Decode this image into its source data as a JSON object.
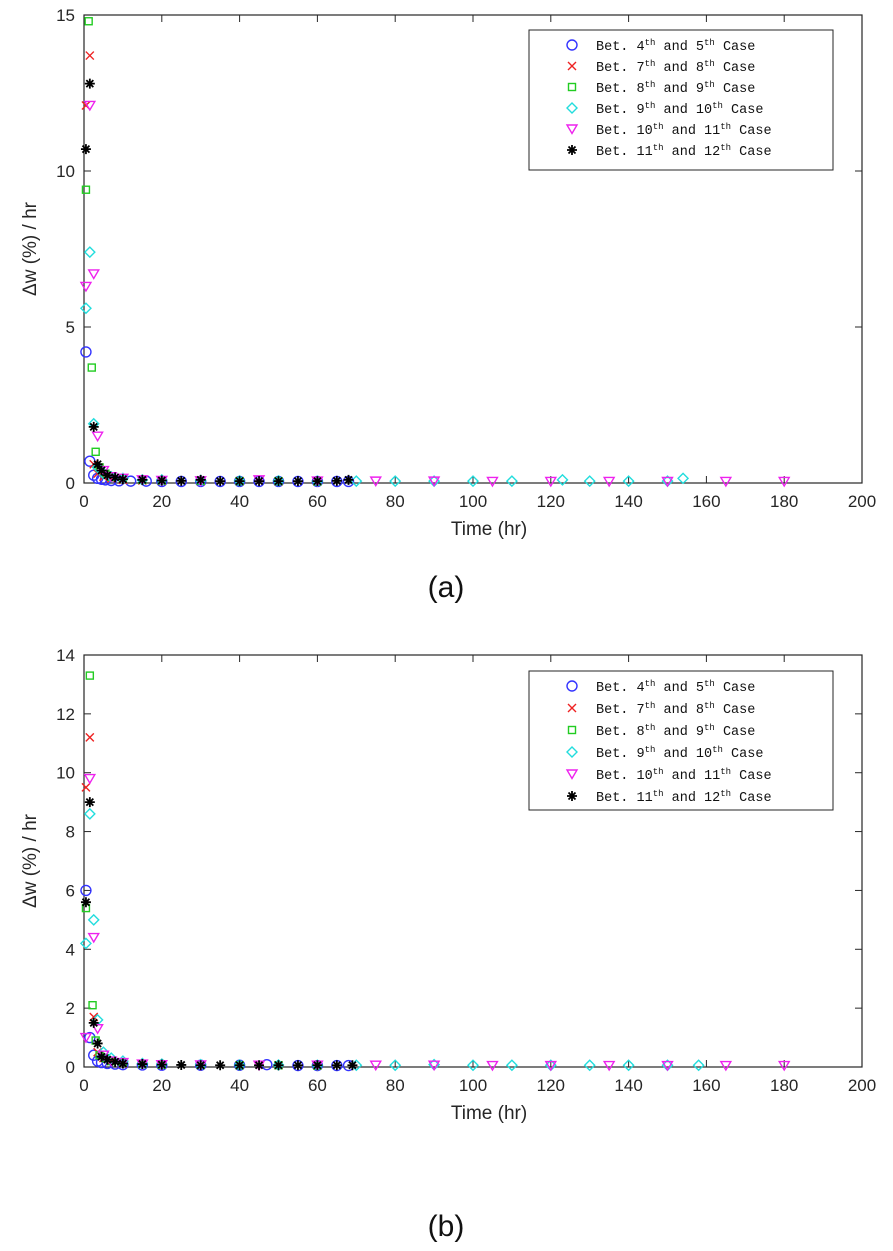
{
  "chart_data": [
    {
      "type": "scatter",
      "panel_label": "(a)",
      "xlabel": "Time (hr)",
      "ylabel": "Δw (%) / hr",
      "xlim": [
        0,
        200
      ],
      "ylim": [
        0,
        15
      ],
      "xticks": [
        "0",
        "20",
        "40",
        "60",
        "80",
        "100",
        "120",
        "140",
        "160",
        "180",
        "200"
      ],
      "yticks": [
        "0",
        "5",
        "10",
        "15"
      ],
      "grid": false,
      "legend_position": "top-right",
      "series": [
        {
          "name": "Bet. 4th and 5th Case",
          "label": {
            "a": "Bet. 4",
            "s1": "th",
            "b": " and 5",
            "s2": "th",
            "c": " Case"
          },
          "marker": "circle",
          "color": "#3333ff",
          "x": [
            0.5,
            1.5,
            2.5,
            3.5,
            4.5,
            5.5,
            7,
            9,
            12,
            16,
            20,
            25,
            30,
            35,
            40,
            45,
            50,
            55,
            60,
            65,
            68
          ],
          "y": [
            4.2,
            0.7,
            0.25,
            0.15,
            0.12,
            0.1,
            0.08,
            0.07,
            0.06,
            0.06,
            0.05,
            0.05,
            0.05,
            0.05,
            0.05,
            0.05,
            0.05,
            0.05,
            0.05,
            0.05,
            0.05
          ]
        },
        {
          "name": "Bet. 7th and 8th Case",
          "label": {
            "a": "Bet. 7",
            "s1": "th",
            "b": " and 8",
            "s2": "th",
            "c": " Case"
          },
          "marker": "x",
          "color": "#ee2222",
          "x": [
            0.5,
            1.5,
            2.5,
            3.5,
            5,
            7,
            10,
            15,
            20,
            30,
            40,
            50,
            60
          ],
          "y": [
            12.1,
            13.7,
            0.6,
            0.3,
            0.2,
            0.15,
            0.1,
            0.08,
            0.07,
            0.06,
            0.06,
            0.05,
            0.05
          ]
        },
        {
          "name": "Bet. 8th and 9th Case",
          "label": {
            "a": "Bet. 8",
            "s1": "th",
            "b": " and 9",
            "s2": "th",
            "c": " Case"
          },
          "marker": "square",
          "color": "#22cc22",
          "x": [
            0.5,
            1.2,
            2.0,
            3.0,
            4.0,
            5.5,
            7,
            10,
            15,
            20,
            30,
            40,
            50,
            60
          ],
          "y": [
            9.4,
            14.8,
            3.7,
            1.0,
            0.5,
            0.3,
            0.2,
            0.15,
            0.1,
            0.08,
            0.07,
            0.06,
            0.06,
            0.05
          ]
        },
        {
          "name": "Bet. 9th and 10th Case",
          "label": {
            "a": "Bet. 9",
            "s1": "th",
            "b": " and 10",
            "s2": "th",
            "c": " Case"
          },
          "marker": "diamond",
          "color": "#22dddd",
          "x": [
            0.5,
            1.5,
            2.5,
            3.5,
            5,
            7,
            10,
            15,
            20,
            30,
            40,
            50,
            60,
            70,
            80,
            90,
            100,
            110,
            123,
            130,
            140,
            150,
            154
          ],
          "y": [
            5.6,
            7.4,
            1.9,
            0.5,
            0.3,
            0.2,
            0.15,
            0.1,
            0.1,
            0.08,
            0.07,
            0.07,
            0.06,
            0.06,
            0.06,
            0.06,
            0.06,
            0.06,
            0.1,
            0.06,
            0.06,
            0.06,
            0.15
          ]
        },
        {
          "name": "Bet. 10th and 11th Case",
          "label": {
            "a": "Bet. 10",
            "s1": "th",
            "b": " and 11",
            "s2": "th",
            "c": " Case"
          },
          "marker": "triangle-down",
          "color": "#ee22ee",
          "x": [
            0.5,
            1.5,
            2.5,
            3.5,
            5,
            7,
            10,
            15,
            20,
            30,
            45,
            60,
            75,
            90,
            105,
            120,
            135,
            150,
            165,
            180
          ],
          "y": [
            6.3,
            12.1,
            6.7,
            1.5,
            0.4,
            0.2,
            0.15,
            0.1,
            0.08,
            0.07,
            0.1,
            0.06,
            0.06,
            0.06,
            0.05,
            0.05,
            0.05,
            0.05,
            0.05,
            0.05
          ]
        },
        {
          "name": "Bet. 11th and 12th Case",
          "label": {
            "a": "Bet. 11",
            "s1": "th",
            "b": " and 12",
            "s2": "th",
            "c": " Case"
          },
          "marker": "star",
          "color": "#000000",
          "x": [
            0.5,
            1.5,
            2.5,
            3.5,
            4.5,
            6,
            8,
            10,
            15,
            20,
            25,
            30,
            35,
            40,
            45,
            50,
            55,
            60,
            65,
            68
          ],
          "y": [
            10.7,
            12.8,
            1.8,
            0.6,
            0.4,
            0.25,
            0.18,
            0.12,
            0.1,
            0.08,
            0.07,
            0.1,
            0.06,
            0.06,
            0.06,
            0.06,
            0.06,
            0.06,
            0.07,
            0.1
          ]
        }
      ]
    },
    {
      "type": "scatter",
      "panel_label": "(b)",
      "xlabel": "Time (hr)",
      "ylabel": "Δw (%) / hr",
      "xlim": [
        0,
        200
      ],
      "ylim": [
        0,
        14
      ],
      "xticks": [
        "0",
        "20",
        "40",
        "60",
        "80",
        "100",
        "120",
        "140",
        "160",
        "180",
        "200"
      ],
      "yticks": [
        "0",
        "2",
        "4",
        "6",
        "8",
        "10",
        "12",
        "14"
      ],
      "grid": false,
      "legend_position": "top-right",
      "series": [
        {
          "name": "Bet. 4th and 5th Case",
          "label": {
            "a": "Bet. 4",
            "s1": "th",
            "b": " and 5",
            "s2": "th",
            "c": " Case"
          },
          "marker": "circle",
          "color": "#3333ff",
          "x": [
            0.5,
            1.5,
            2.5,
            3.5,
            4.5,
            6,
            8,
            10,
            15,
            20,
            30,
            40,
            47,
            55,
            60,
            65,
            68
          ],
          "y": [
            6.0,
            1.0,
            0.4,
            0.2,
            0.15,
            0.12,
            0.1,
            0.08,
            0.07,
            0.06,
            0.06,
            0.06,
            0.08,
            0.05,
            0.05,
            0.05,
            0.05
          ]
        },
        {
          "name": "Bet. 7th and 8th Case",
          "label": {
            "a": "Bet. 7",
            "s1": "th",
            "b": " and 8",
            "s2": "th",
            "c": " Case"
          },
          "marker": "x",
          "color": "#ee2222",
          "x": [
            0.5,
            1.5,
            2.5,
            3.5,
            5,
            7,
            10,
            15,
            20,
            30,
            40,
            50,
            60
          ],
          "y": [
            9.5,
            11.2,
            1.7,
            0.5,
            0.3,
            0.2,
            0.12,
            0.1,
            0.08,
            0.07,
            0.06,
            0.06,
            0.05
          ]
        },
        {
          "name": "Bet. 8th and 9th Case",
          "label": {
            "a": "Bet. 8",
            "s1": "th",
            "b": " and 9",
            "s2": "th",
            "c": " Case"
          },
          "marker": "square",
          "color": "#22cc22",
          "x": [
            0.5,
            1.5,
            2.2,
            3.0,
            4.0,
            5.5,
            7,
            10,
            15,
            20,
            30,
            40,
            50,
            60
          ],
          "y": [
            5.4,
            13.3,
            2.1,
            0.9,
            0.4,
            0.3,
            0.2,
            0.15,
            0.1,
            0.08,
            0.07,
            0.06,
            0.06,
            0.05
          ]
        },
        {
          "name": "Bet. 9th and 10th Case",
          "label": {
            "a": "Bet. 9",
            "s1": "th",
            "b": " and 10",
            "s2": "th",
            "c": " Case"
          },
          "marker": "diamond",
          "color": "#22dddd",
          "x": [
            0.5,
            1.5,
            2.5,
            3.5,
            5,
            7,
            10,
            15,
            20,
            30,
            40,
            50,
            60,
            70,
            80,
            90,
            100,
            110,
            120,
            130,
            140,
            150,
            158
          ],
          "y": [
            4.2,
            8.6,
            5.0,
            1.6,
            0.5,
            0.3,
            0.2,
            0.12,
            0.1,
            0.08,
            0.07,
            0.07,
            0.06,
            0.06,
            0.06,
            0.08,
            0.06,
            0.06,
            0.06,
            0.06,
            0.06,
            0.06,
            0.06
          ]
        },
        {
          "name": "Bet. 10th and 11th Case",
          "label": {
            "a": "Bet. 10",
            "s1": "th",
            "b": " and 11",
            "s2": "th",
            "c": " Case"
          },
          "marker": "triangle-down",
          "color": "#ee22ee",
          "x": [
            0.5,
            1.5,
            2.5,
            3.5,
            5,
            7,
            10,
            15,
            20,
            30,
            45,
            60,
            75,
            90,
            105,
            120,
            135,
            150,
            165,
            180
          ],
          "y": [
            1.0,
            9.8,
            4.4,
            1.3,
            0.4,
            0.2,
            0.15,
            0.1,
            0.08,
            0.07,
            0.06,
            0.06,
            0.06,
            0.06,
            0.05,
            0.05,
            0.05,
            0.05,
            0.05,
            0.05
          ]
        },
        {
          "name": "Bet. 11th and 12th Case",
          "label": {
            "a": "Bet. 11",
            "s1": "th",
            "b": " and 12",
            "s2": "th",
            "c": " Case"
          },
          "marker": "star",
          "color": "#000000",
          "x": [
            0.5,
            1.5,
            2.5,
            3.5,
            4.5,
            6,
            8,
            10,
            15,
            20,
            25,
            30,
            35,
            40,
            45,
            50,
            55,
            60,
            65,
            69
          ],
          "y": [
            5.6,
            9.0,
            1.5,
            0.8,
            0.35,
            0.25,
            0.18,
            0.12,
            0.1,
            0.08,
            0.07,
            0.06,
            0.06,
            0.06,
            0.06,
            0.06,
            0.06,
            0.06,
            0.06,
            0.06
          ]
        }
      ]
    }
  ]
}
